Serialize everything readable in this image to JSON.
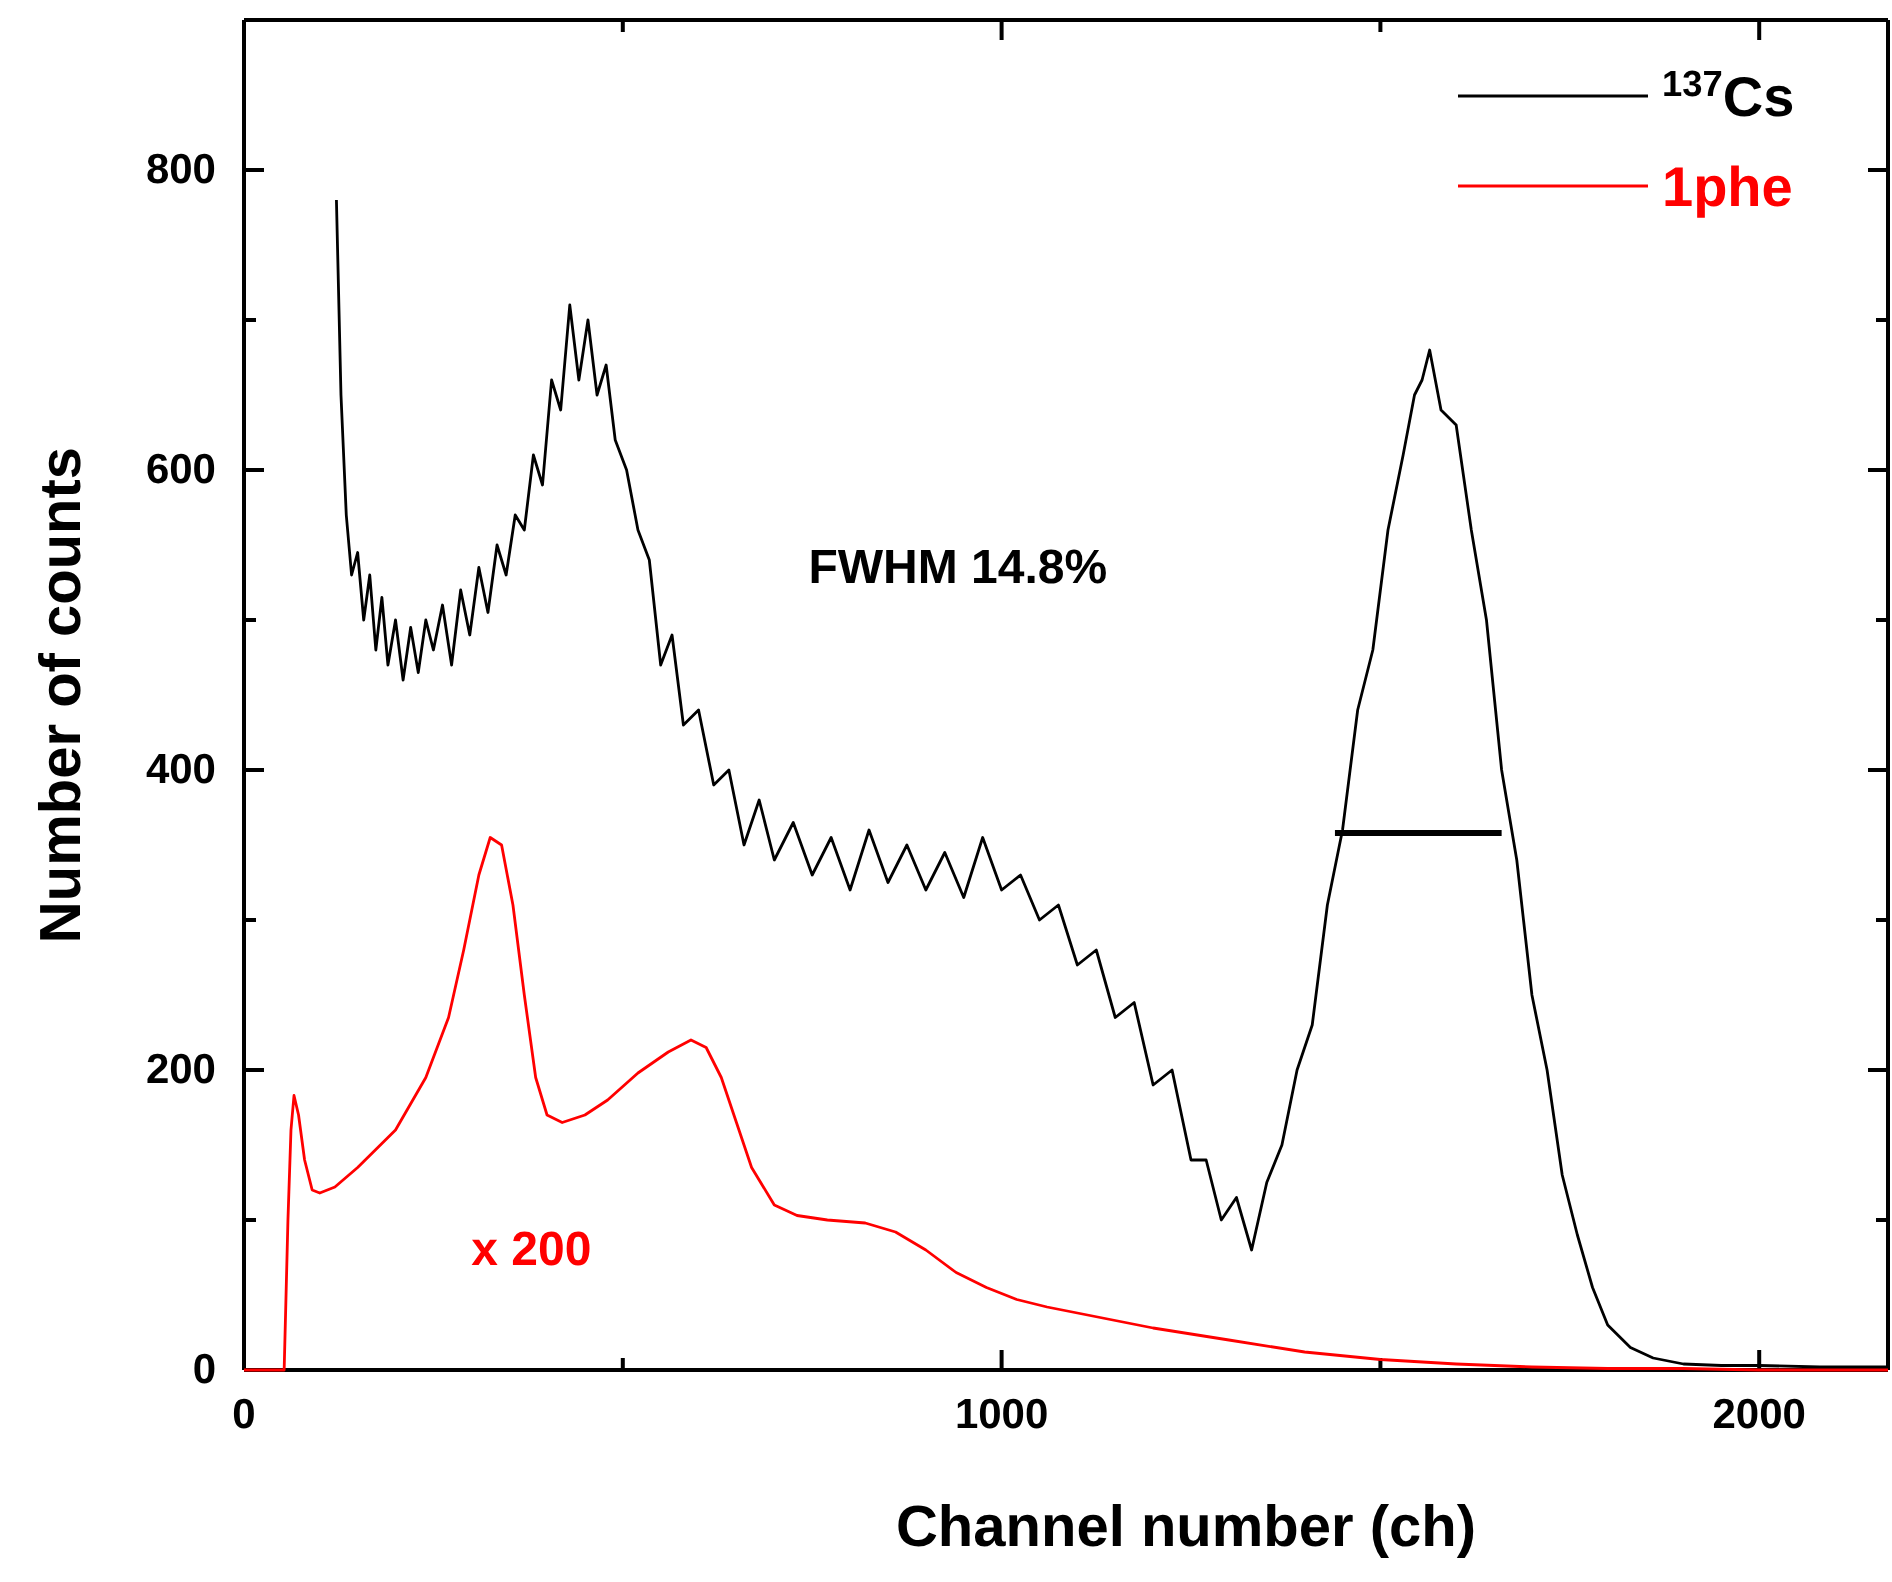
{
  "chart_data": {
    "type": "line",
    "xlabel": "Channel number (ch)",
    "ylabel": "Number of counts",
    "xlim": [
      0,
      2170
    ],
    "ylim": [
      0,
      900
    ],
    "xticks": [
      0,
      {
        "value": 500,
        "label": null
      },
      1000,
      {
        "value": 1500,
        "label": null
      },
      2000
    ],
    "yticks": [
      0,
      {
        "value": 100,
        "label": null
      },
      200,
      {
        "value": 300,
        "label": null
      },
      400,
      {
        "value": 500,
        "label": null
      },
      600,
      {
        "value": 700,
        "label": null
      },
      800
    ],
    "grid": false,
    "legend": "top right",
    "line_style": "solid",
    "marker": "none",
    "annotations": [
      "FWHM 14.8%",
      "x 200"
    ],
    "series": [
      {
        "name": "$^{137}$Cs",
        "color": "#000000",
        "x": [
          0,
          28,
          31,
          116,
          122,
          128,
          135,
          142,
          150,
          158,
          166,
          174,
          182,
          190,
          200,
          210,
          220,
          230,
          240,
          250,
          262,
          274,
          286,
          298,
          310,
          322,
          334,
          346,
          358,
          370,
          382,
          394,
          406,
          418,
          430,
          442,
          454,
          466,
          478,
          490,
          505,
          520,
          535,
          550,
          565,
          580,
          600,
          620,
          640,
          660,
          680,
          700,
          725,
          750,
          775,
          800,
          825,
          850,
          875,
          900,
          925,
          950,
          975,
          1000,
          1025,
          1050,
          1075,
          1100,
          1125,
          1150,
          1175,
          1200,
          1225,
          1250,
          1270,
          1290,
          1310,
          1330,
          1350,
          1370,
          1390,
          1410,
          1430,
          1450,
          1470,
          1490,
          1510,
          1530,
          1545,
          1555,
          1565,
          1580,
          1600,
          1620,
          1640,
          1660,
          1680,
          1700,
          1720,
          1740,
          1760,
          1780,
          1800,
          1830,
          1860,
          1900,
          1950,
          2000,
          2080,
          2170
        ],
        "values": [
          0,
          0,
          null,
          null,
          780,
          650,
          570,
          530,
          545,
          500,
          530,
          480,
          515,
          470,
          500,
          460,
          495,
          465,
          500,
          480,
          510,
          470,
          520,
          490,
          535,
          505,
          550,
          530,
          570,
          560,
          610,
          590,
          660,
          640,
          710,
          660,
          700,
          650,
          670,
          620,
          600,
          560,
          540,
          470,
          490,
          430,
          440,
          390,
          400,
          350,
          380,
          340,
          365,
          330,
          355,
          320,
          360,
          325,
          350,
          320,
          345,
          315,
          355,
          320,
          330,
          300,
          310,
          270,
          280,
          235,
          245,
          190,
          200,
          140,
          140,
          100,
          115,
          80,
          125,
          150,
          200,
          230,
          310,
          360,
          440,
          480,
          560,
          610,
          650,
          660,
          680,
          640,
          630,
          560,
          500,
          400,
          340,
          250,
          200,
          130,
          90,
          55,
          30,
          15,
          8,
          4,
          3,
          3,
          2,
          2
        ]
      },
      {
        "name": "1phe",
        "color": "#ff0000",
        "x": [
          0,
          53,
          58,
          62,
          66,
          72,
          80,
          90,
          100,
          120,
          150,
          200,
          240,
          270,
          290,
          310,
          325,
          340,
          355,
          370,
          385,
          400,
          420,
          450,
          480,
          520,
          560,
          590,
          610,
          630,
          650,
          670,
          700,
          730,
          770,
          820,
          860,
          900,
          940,
          980,
          1020,
          1060,
          1100,
          1150,
          1200,
          1300,
          1400,
          1500,
          1600,
          1700,
          1800,
          1900,
          2000,
          2170
        ],
        "values": [
          0,
          0,
          100,
          160,
          183,
          170,
          140,
          120,
          118,
          122,
          135,
          160,
          195,
          235,
          280,
          330,
          355,
          350,
          310,
          250,
          195,
          170,
          165,
          170,
          180,
          198,
          212,
          220,
          215,
          195,
          165,
          135,
          110,
          103,
          100,
          98,
          92,
          80,
          65,
          55,
          47,
          42,
          38,
          33,
          28,
          20,
          12,
          7,
          4,
          2,
          1,
          1,
          0,
          0
        ]
      },
      {
        "color": "#000000",
        "x": [
          1440,
          1660
        ],
        "values": [
          358,
          358
        ]
      }
    ]
  }
}
